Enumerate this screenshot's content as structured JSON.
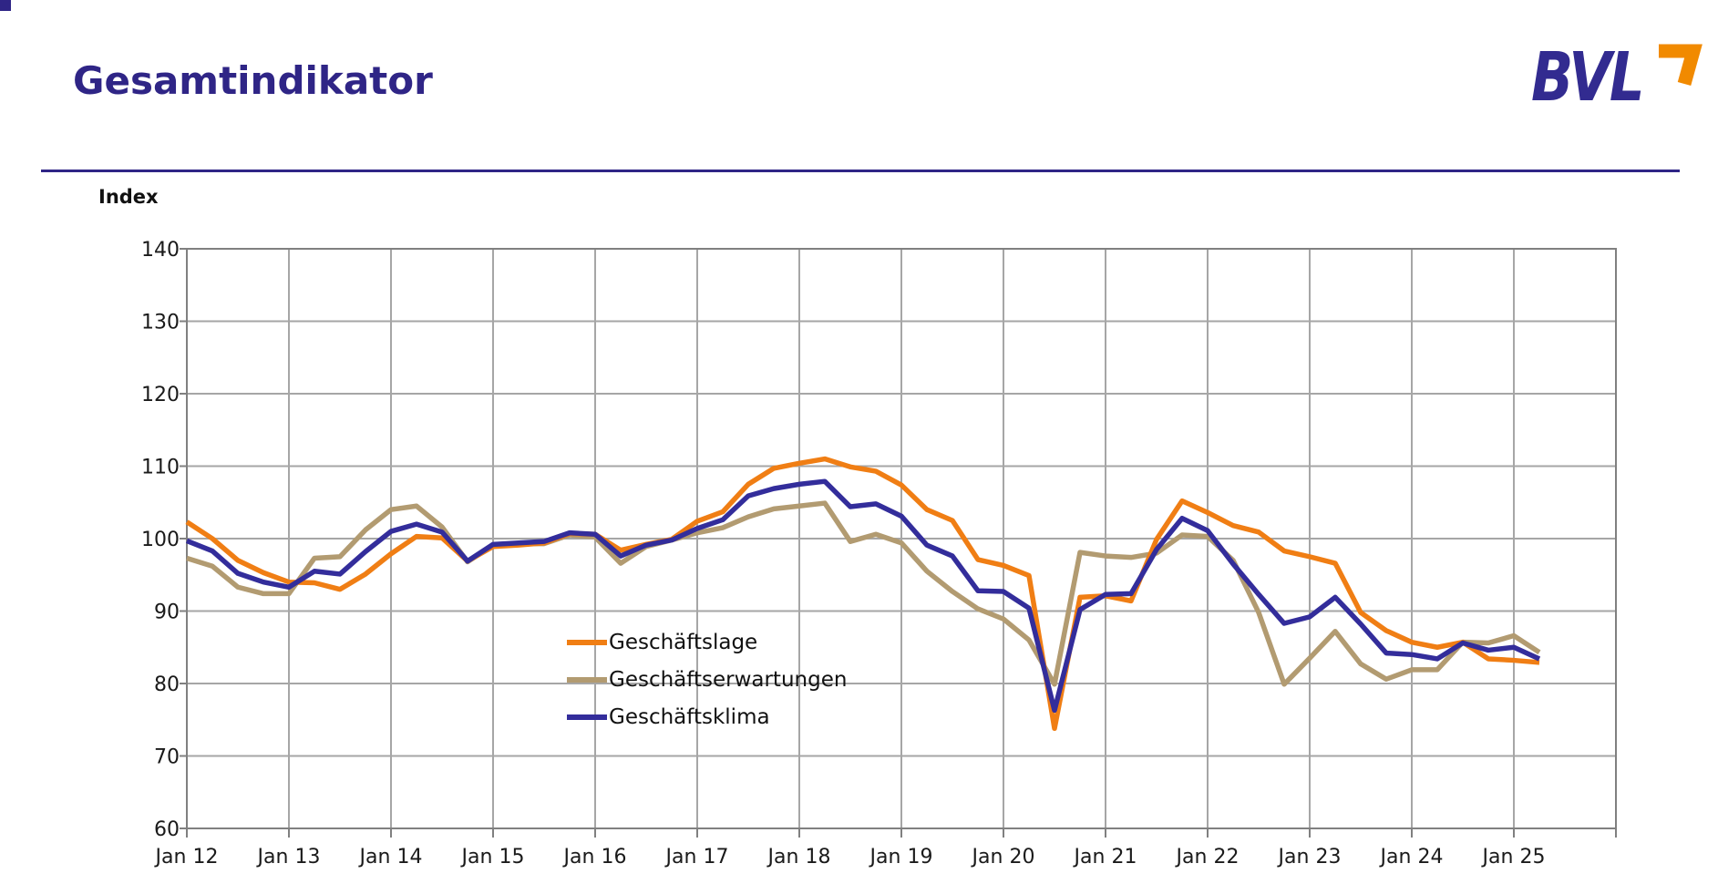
{
  "header": {
    "title": "Gesamtindikator",
    "title_color": "#2F2586",
    "rule_color": "#2F2586"
  },
  "logo": {
    "text": "BVL",
    "text_color": "#322B90",
    "arrow_color": "#F18A00"
  },
  "corner_square_color": "#2F2586",
  "chart_data": {
    "type": "line",
    "title": "Gesamtindikator",
    "ylabel": "Index",
    "ylim": [
      60,
      140
    ],
    "ytick_step": 10,
    "x_start_year": 2012,
    "x_end_year": 2026,
    "points_per_year": 4,
    "grid": true,
    "grid_color": "#A6A6A6",
    "axis_color": "#808080",
    "legend_position": "inside bottom-left",
    "x_tick_labels": [
      "Jan 12",
      "Jan 13",
      "Jan 14",
      "Jan 15",
      "Jan 16",
      "Jan 17",
      "Jan 18",
      "Jan 19",
      "Jan 20",
      "Jan 21",
      "Jan 22",
      "Jan 23",
      "Jan 24",
      "Jan 25"
    ],
    "series": [
      {
        "name": "Geschäftslage",
        "color": "#F07E14",
        "values": [
          102.3,
          100.0,
          97.0,
          95.3,
          94.0,
          93.9,
          93.0,
          95.1,
          97.9,
          100.3,
          100.1,
          96.9,
          98.9,
          99.1,
          99.4,
          100.7,
          100.6,
          98.4,
          99.2,
          99.9,
          102.4,
          103.7,
          107.5,
          109.7,
          110.4,
          111.0,
          109.9,
          109.3,
          107.4,
          104.0,
          102.5,
          97.1,
          96.3,
          94.9,
          73.8,
          91.9,
          92.1,
          91.4,
          99.9,
          105.2,
          103.6,
          101.8,
          100.9,
          98.3,
          97.5,
          96.6,
          89.8,
          87.3,
          85.7,
          85.0,
          85.7,
          83.4,
          83.2,
          82.9
        ]
      },
      {
        "name": "Geschäftserwartungen",
        "color": "#B29B71",
        "values": [
          97.3,
          96.2,
          93.3,
          92.4,
          92.4,
          97.3,
          97.5,
          101.2,
          104.0,
          104.5,
          101.6,
          96.8,
          99.1,
          99.3,
          99.3,
          100.5,
          100.2,
          96.6,
          98.9,
          99.8,
          100.8,
          101.5,
          103.0,
          104.1,
          104.5,
          104.9,
          99.6,
          100.6,
          99.4,
          95.5,
          92.7,
          90.3,
          88.9,
          86.0,
          79.9,
          98.1,
          97.6,
          97.4,
          98.0,
          100.5,
          100.3,
          97.0,
          89.8,
          79.9,
          83.5,
          87.2,
          82.7,
          80.6,
          81.9,
          81.9,
          85.7,
          85.6,
          86.6,
          84.3
        ]
      },
      {
        "name": "Geschäftsklima",
        "color": "#332D9B",
        "values": [
          99.7,
          98.3,
          95.2,
          94.0,
          93.3,
          95.5,
          95.1,
          98.2,
          101.0,
          102.0,
          100.9,
          96.9,
          99.2,
          99.4,
          99.6,
          100.8,
          100.6,
          97.6,
          99.1,
          99.8,
          101.4,
          102.6,
          105.9,
          106.9,
          107.5,
          107.9,
          104.4,
          104.8,
          103.1,
          99.1,
          97.6,
          92.8,
          92.7,
          90.4,
          76.3,
          90.2,
          92.3,
          92.4,
          98.5,
          102.8,
          101.1,
          96.5,
          92.3,
          88.3,
          89.2,
          91.9,
          88.2,
          84.2,
          84.0,
          83.4,
          85.6,
          84.6,
          85.0,
          83.4
        ]
      }
    ],
    "draw_order": [
      1,
      0,
      2
    ]
  }
}
